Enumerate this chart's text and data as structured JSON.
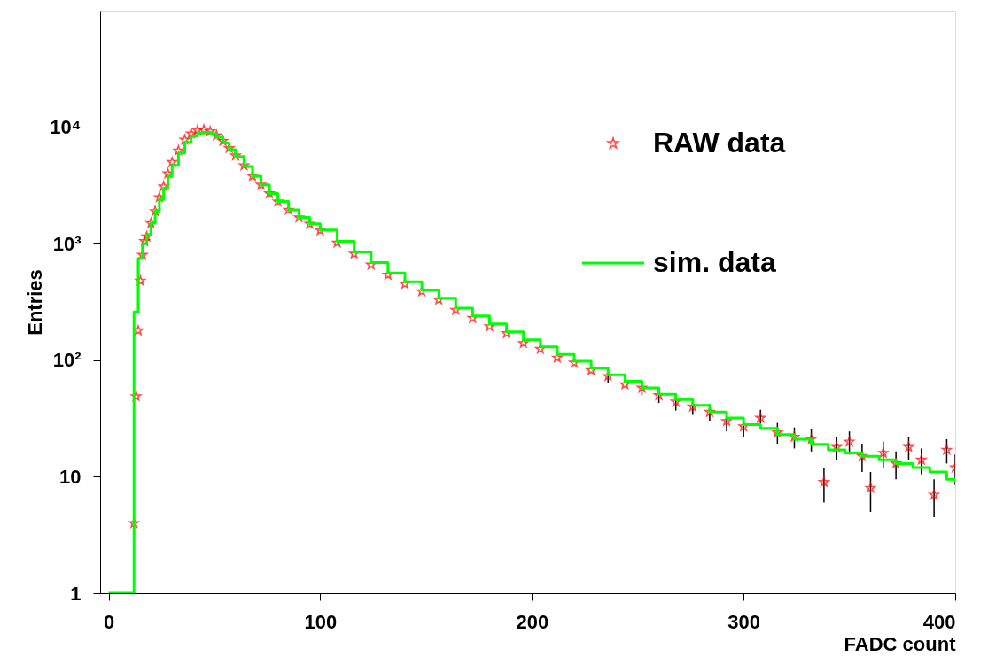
{
  "chart_data": {
    "type": "scatter",
    "xlabel": "FADC count",
    "ylabel": "Entries",
    "xlim": [
      -4,
      400
    ],
    "xticks": [
      0,
      100,
      200,
      300,
      400
    ],
    "ylim": [
      1,
      100000
    ],
    "yticks": [
      1,
      10,
      {
        "value": 100,
        "label": "10²"
      },
      {
        "value": 1000,
        "label": "10³"
      },
      {
        "value": 10000,
        "label": "10⁴"
      }
    ],
    "log": "y",
    "grid": false,
    "legend": "top right",
    "series": [
      {
        "name": "RAW data",
        "marker": "star",
        "color": "#ff0000",
        "x": [
          12,
          13,
          14,
          15,
          16,
          17,
          18,
          20,
          22,
          24,
          26,
          28,
          30,
          33,
          36,
          39,
          42,
          45,
          48,
          51,
          54,
          57,
          60,
          64,
          68,
          72,
          76,
          80,
          85,
          90,
          95,
          100,
          108,
          116,
          124,
          132,
          140,
          148,
          156,
          164,
          172,
          180,
          188,
          196,
          204,
          212,
          220,
          228,
          236,
          244,
          252,
          260,
          268,
          276,
          284,
          292,
          300,
          308,
          316,
          324,
          332,
          338,
          344,
          350,
          356,
          360,
          366,
          372,
          378,
          384,
          390,
          396,
          400
        ],
        "values": [
          4,
          49,
          180,
          480,
          800,
          1050,
          1150,
          1500,
          1900,
          2500,
          3100,
          4000,
          5000,
          6300,
          7800,
          8800,
          9400,
          9500,
          9200,
          8500,
          7600,
          6600,
          5700,
          4700,
          3800,
          3200,
          2700,
          2300,
          1950,
          1680,
          1480,
          1300,
          1020,
          820,
          660,
          540,
          450,
          390,
          330,
          270,
          230,
          195,
          170,
          140,
          125,
          105,
          95,
          82,
          73,
          62,
          58,
          50,
          44,
          40,
          36,
          30,
          27,
          32,
          24,
          22,
          21,
          9,
          18,
          20,
          15,
          8,
          16,
          13,
          18,
          14,
          7,
          17,
          12
        ],
        "errors": [
          null,
          null,
          null,
          null,
          null,
          null,
          null,
          null,
          null,
          null,
          null,
          null,
          null,
          null,
          null,
          null,
          null,
          null,
          null,
          null,
          null,
          null,
          null,
          null,
          null,
          null,
          null,
          null,
          null,
          null,
          null,
          null,
          null,
          null,
          null,
          null,
          null,
          null,
          null,
          null,
          null,
          null,
          null,
          null,
          null,
          null,
          null,
          null,
          9,
          null,
          8,
          7,
          7,
          6,
          6,
          5.5,
          5,
          5.5,
          5,
          4.5,
          4.5,
          3,
          4,
          4.5,
          4,
          3,
          4,
          3.5,
          4,
          3.5,
          2.5,
          4,
          3.5
        ]
      },
      {
        "name": "sim. data",
        "type": "step",
        "color": "#00ff00",
        "line_style": "solid",
        "x": [
          0,
          12,
          14,
          16,
          18,
          20,
          22,
          24,
          26,
          28,
          30,
          33,
          36,
          39,
          42,
          45,
          48,
          51,
          54,
          57,
          60,
          64,
          68,
          72,
          76,
          80,
          85,
          90,
          95,
          100,
          108,
          116,
          124,
          132,
          140,
          148,
          156,
          164,
          172,
          180,
          188,
          196,
          204,
          212,
          220,
          228,
          236,
          244,
          252,
          260,
          268,
          276,
          284,
          292,
          300,
          308,
          316,
          324,
          332,
          340,
          348,
          356,
          364,
          372,
          380,
          388,
          396,
          400
        ],
        "values": [
          1,
          260,
          750,
          1000,
          1200,
          1500,
          1900,
          2400,
          3000,
          3800,
          4700,
          6000,
          7400,
          8400,
          8900,
          9000,
          8800,
          8200,
          7300,
          6400,
          5600,
          4600,
          3800,
          3200,
          2700,
          2300,
          1950,
          1680,
          1480,
          1310,
          1050,
          850,
          690,
          560,
          470,
          400,
          340,
          280,
          240,
          205,
          175,
          150,
          130,
          112,
          98,
          86,
          75,
          66,
          58,
          51,
          46,
          41,
          36,
          32,
          28,
          26,
          23,
          21,
          19,
          17,
          16,
          15,
          14,
          13,
          12,
          11,
          9.5,
          9
        ]
      }
    ]
  }
}
